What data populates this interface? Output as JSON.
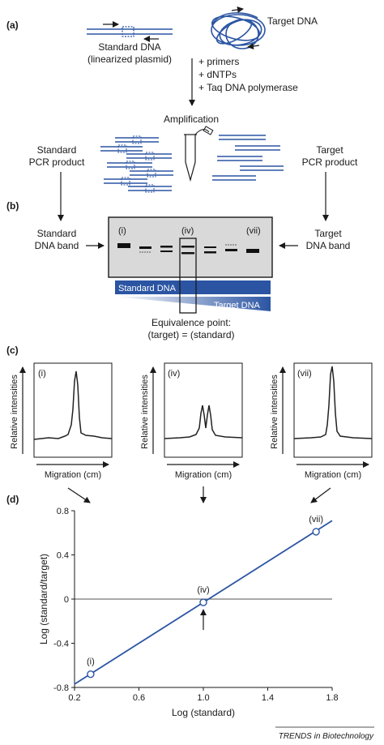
{
  "panel_a": {
    "label": "(a)",
    "standard_dna": "Standard DNA",
    "linearized": "(linearized plasmid)",
    "target_dna": "Target DNA",
    "reagents": [
      "+ primers",
      "+ dNTPs",
      "+ Taq DNA polymerase"
    ],
    "amplification": "Amplification",
    "standard_product_1": "Standard",
    "standard_product_2": "PCR product",
    "target_product_1": "Target",
    "target_product_2": "PCR product"
  },
  "panel_b": {
    "label": "(b)",
    "standard_band_1": "Standard",
    "standard_band_2": "DNA band",
    "target_band_1": "Target",
    "target_band_2": "DNA band",
    "lane_i": "(i)",
    "lane_iv": "(iv)",
    "lane_vii": "(vii)",
    "standard_bar": "Standard DNA",
    "target_bar": "Target DNA",
    "equivalence_1": "Equivalence point:",
    "equivalence_2": "(target) = (standard)"
  },
  "panel_c": {
    "label": "(c)",
    "plots": [
      {
        "roman": "(i)",
        "ylabel": "Relative intensities",
        "xlabel": "Migration (cm)"
      },
      {
        "roman": "(iv)",
        "ylabel": "Relative intensities",
        "xlabel": "Migration (cm)"
      },
      {
        "roman": "(vii)",
        "ylabel": "Relative intensities",
        "xlabel": "Migration (cm)"
      }
    ]
  },
  "panel_d": {
    "label": "(d)"
  },
  "credit": "TRENDS in Biotechnology",
  "colors": {
    "dna_blue": "#2b55a3",
    "bar_blue": "#2b55a3"
  },
  "chart_data": {
    "type": "scatter",
    "title": "",
    "xlabel": "Log (standard)",
    "ylabel": "Log (standard/target)",
    "xlim": [
      0.2,
      1.8
    ],
    "ylim": [
      -0.8,
      0.8
    ],
    "xticks": [
      "0.2",
      "0.6",
      "1.0",
      "1.4",
      "1.8"
    ],
    "yticks": [
      "-0.8",
      "-0.4",
      "0",
      "0.4",
      "0.8"
    ],
    "grid": false,
    "points": [
      {
        "label": "(i)",
        "x": 0.3,
        "y": -0.68
      },
      {
        "label": "(iv)",
        "x": 1.0,
        "y": -0.03
      },
      {
        "label": "(vii)",
        "x": 1.7,
        "y": 0.61
      }
    ],
    "fit_line": {
      "x": [
        0.2,
        1.8
      ],
      "y": [
        -0.77,
        0.71
      ]
    },
    "reference_line_y": 0
  }
}
